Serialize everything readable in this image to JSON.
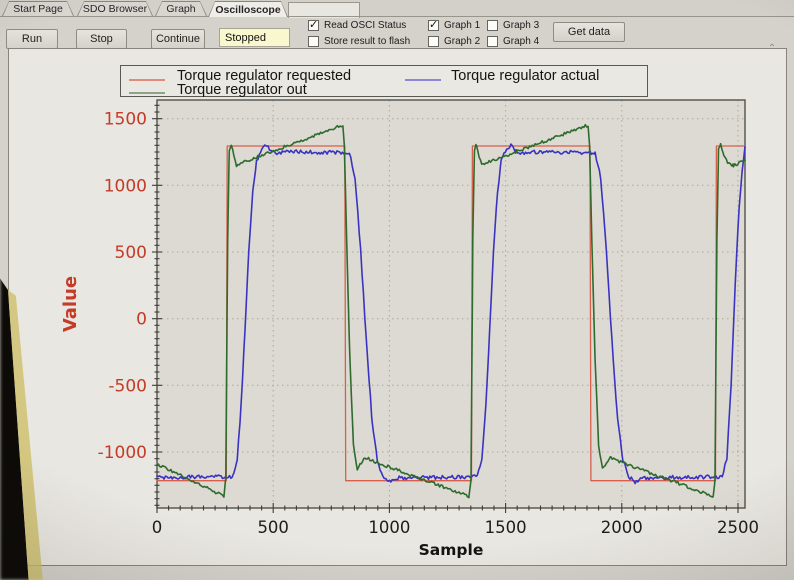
{
  "tabs": {
    "items": [
      {
        "label": "Start Page",
        "active": false
      },
      {
        "label": "SDO Browser",
        "active": false
      },
      {
        "label": "Graph",
        "active": false
      },
      {
        "label": "Oscilloscope",
        "active": true
      }
    ]
  },
  "toolbar": {
    "run_label": "Run",
    "stop_label": "Stop",
    "continue_label": "Continue",
    "status": {
      "value": "Stopped"
    },
    "read_osci": {
      "label": "Read OSCI Status",
      "checked": true
    },
    "store_flash": {
      "label": "Store result to flash",
      "checked": false
    },
    "graph1": {
      "label": "Graph 1",
      "checked": true
    },
    "graph2": {
      "label": "Graph 2",
      "checked": false
    },
    "graph3": {
      "label": "Graph 3",
      "checked": false
    },
    "gra4_note": "",
    "graph4": {
      "label": "Graph 4",
      "checked": false
    },
    "get_data_label": "Get data"
  },
  "chart_data": {
    "type": "line",
    "title": "",
    "xlabel": "Sample",
    "ylabel": "Value",
    "xlim": [
      0,
      2530
    ],
    "ylim": [
      -1420,
      1640
    ],
    "xticks": [
      0,
      500,
      1000,
      1500,
      2000,
      2500
    ],
    "yticks": [
      -1000,
      -500,
      0,
      500,
      1000,
      1500
    ],
    "minor_tick_step": {
      "x": 50,
      "y": 50
    },
    "grid": true,
    "legend_position": "top",
    "colors": {
      "y_axis_text": "#c43b28",
      "x_axis_text": "#1d1d1b"
    },
    "series": [
      {
        "name": "Torque regulator requested",
        "color": "#d85f49",
        "legend_color": "#e08a7a",
        "noise": 0,
        "points": [
          [
            0,
            -1215
          ],
          [
            298,
            -1215
          ],
          [
            302,
            1295
          ],
          [
            808,
            1295
          ],
          [
            812,
            -1215
          ],
          [
            1353,
            -1215
          ],
          [
            1357,
            1295
          ],
          [
            1863,
            1295
          ],
          [
            1867,
            -1215
          ],
          [
            2403,
            -1215
          ],
          [
            2407,
            1295
          ],
          [
            2530,
            1295
          ]
        ]
      },
      {
        "name": "Torque regulator actual",
        "color": "#3a33c2",
        "legend_color": "#8d86da",
        "noise": 14,
        "points": [
          [
            0,
            -1190
          ],
          [
            325,
            -1185
          ],
          [
            345,
            -1060
          ],
          [
            362,
            -650
          ],
          [
            378,
            -100
          ],
          [
            395,
            500
          ],
          [
            412,
            950
          ],
          [
            428,
            1180
          ],
          [
            452,
            1280
          ],
          [
            472,
            1300
          ],
          [
            492,
            1255
          ],
          [
            515,
            1240
          ],
          [
            540,
            1252
          ],
          [
            828,
            1245
          ],
          [
            852,
            1060
          ],
          [
            876,
            520
          ],
          [
            900,
            -150
          ],
          [
            925,
            -760
          ],
          [
            948,
            -1060
          ],
          [
            972,
            -1185
          ],
          [
            1000,
            -1225
          ],
          [
            1030,
            -1195
          ],
          [
            1378,
            -1185
          ],
          [
            1398,
            -1060
          ],
          [
            1415,
            -650
          ],
          [
            1431,
            -100
          ],
          [
            1448,
            500
          ],
          [
            1465,
            950
          ],
          [
            1481,
            1180
          ],
          [
            1505,
            1280
          ],
          [
            1525,
            1300
          ],
          [
            1545,
            1255
          ],
          [
            1568,
            1240
          ],
          [
            1593,
            1252
          ],
          [
            1885,
            1245
          ],
          [
            1909,
            1060
          ],
          [
            1933,
            520
          ],
          [
            1957,
            -150
          ],
          [
            1982,
            -760
          ],
          [
            2005,
            -1060
          ],
          [
            2029,
            -1185
          ],
          [
            2057,
            -1225
          ],
          [
            2087,
            -1195
          ],
          [
            2432,
            -1185
          ],
          [
            2452,
            -1050
          ],
          [
            2470,
            -500
          ],
          [
            2488,
            250
          ],
          [
            2505,
            850
          ],
          [
            2518,
            1120
          ],
          [
            2530,
            1290
          ]
        ]
      },
      {
        "name": "Torque regulator out",
        "color": "#2e6b2c",
        "legend_color": "#8da28b",
        "noise": 11,
        "points": [
          [
            0,
            -1090
          ],
          [
            288,
            -1332
          ],
          [
            296,
            -1200
          ],
          [
            304,
            600
          ],
          [
            311,
            1270
          ],
          [
            320,
            1307
          ],
          [
            331,
            1215
          ],
          [
            342,
            1152
          ],
          [
            362,
            1168
          ],
          [
            800,
            1452
          ],
          [
            806,
            1300
          ],
          [
            816,
            600
          ],
          [
            830,
            -300
          ],
          [
            845,
            -950
          ],
          [
            862,
            -1128
          ],
          [
            878,
            -1080
          ],
          [
            898,
            -1042
          ],
          [
            940,
            -1075
          ],
          [
            1343,
            -1332
          ],
          [
            1351,
            -1200
          ],
          [
            1359,
            600
          ],
          [
            1366,
            1270
          ],
          [
            1375,
            1307
          ],
          [
            1386,
            1215
          ],
          [
            1397,
            1152
          ],
          [
            1417,
            1168
          ],
          [
            1855,
            1452
          ],
          [
            1861,
            1300
          ],
          [
            1871,
            600
          ],
          [
            1885,
            -300
          ],
          [
            1900,
            -950
          ],
          [
            1917,
            -1128
          ],
          [
            1933,
            -1080
          ],
          [
            1953,
            -1042
          ],
          [
            1995,
            -1075
          ],
          [
            2393,
            -1332
          ],
          [
            2401,
            -1200
          ],
          [
            2409,
            600
          ],
          [
            2416,
            1270
          ],
          [
            2425,
            1307
          ],
          [
            2438,
            1230
          ],
          [
            2455,
            1175
          ],
          [
            2480,
            1148
          ],
          [
            2530,
            1188
          ]
        ]
      }
    ]
  }
}
